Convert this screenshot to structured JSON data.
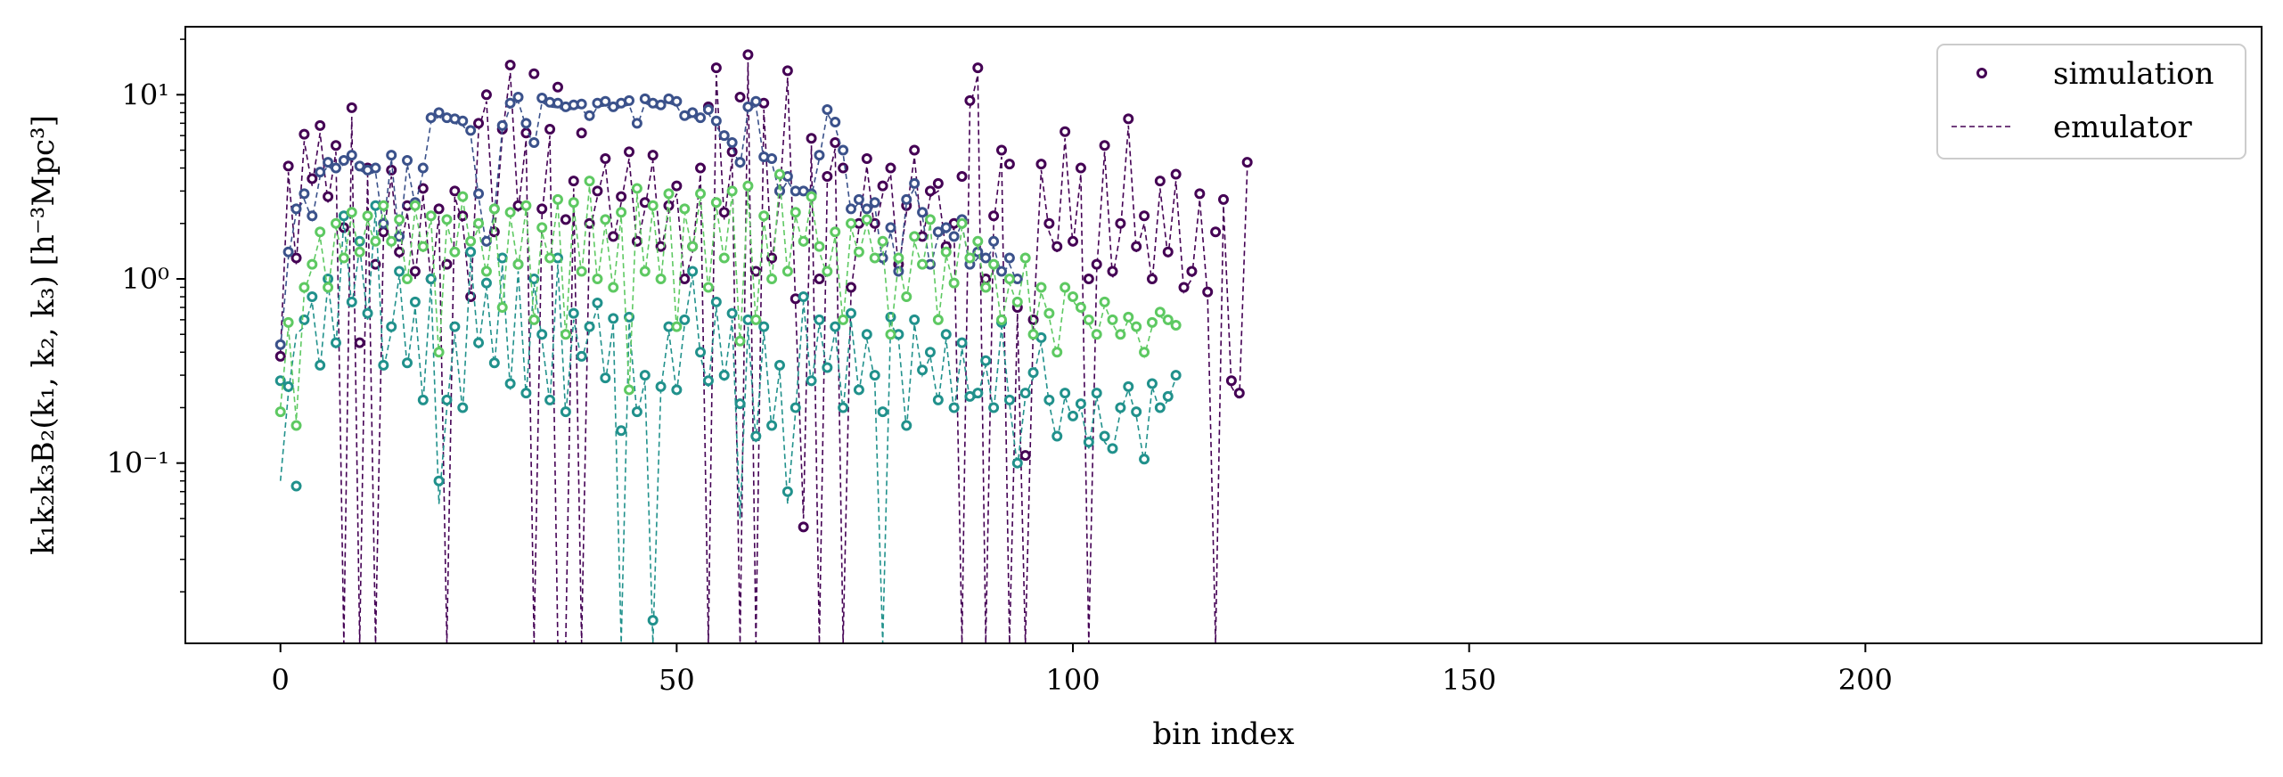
{
  "chart_data": {
    "type": "scatter",
    "title": "",
    "xlabel": "bin index",
    "ylabel": "k₁k₂k₃B₂(k₁, k₂, k₃) [h⁻³Mpc³]",
    "xlim": [
      -12,
      250
    ],
    "ylim": [
      0.0105,
      23.4
    ],
    "yscale": "log",
    "grid": false,
    "legend_position": "top-right",
    "x_ticks": [
      0,
      50,
      100,
      150,
      200
    ],
    "y_ticks": [
      {
        "value": 0.1,
        "label": "10⁻¹"
      },
      {
        "value": 1,
        "label": "10⁰"
      },
      {
        "value": 10,
        "label": "10¹"
      }
    ],
    "legend": [
      {
        "label": "simulation",
        "style": "marker",
        "color": "#440154"
      },
      {
        "label": "emulator",
        "style": "dashed-line",
        "color": "#440154"
      }
    ],
    "series_colors": [
      "#440154",
      "#3b528b",
      "#21918c",
      "#5ec962"
    ],
    "n_bins": 237,
    "series": [
      {
        "color": "#440154",
        "simulation": [
          0.38,
          4.1,
          1.3,
          6.1,
          3.5,
          6.8,
          2.8,
          5.3,
          1.9,
          8.5,
          0.45,
          4.0,
          1.2,
          1.8,
          3.9,
          1.4,
          2.5,
          1.1,
          3.1,
          1.0,
          2.4,
          1.2,
          3.0,
          2.2,
          0.8,
          7.0,
          10.0,
          1.8,
          6.5,
          14.5,
          2.5,
          6.2,
          13.0,
          2.4,
          6.5,
          11.0,
          2.1,
          3.4,
          6.2,
          2.0,
          3.0,
          4.5,
          1.7,
          2.8,
          4.9,
          1.6,
          2.6,
          4.7,
          1.5,
          2.5,
          3.2,
          1.0,
          1.5,
          4.0,
          8.6,
          14.0,
          2.3,
          4.9,
          9.7,
          16.5,
          1.1,
          9.0,
          1.3,
          3.0,
          13.5,
          0.78,
          0.045,
          5.8,
          1.0,
          3.6,
          5.5,
          4.0,
          0.9,
          2.0,
          4.5,
          2.0,
          3.2,
          4.0,
          1.2,
          2.5,
          5.0,
          1.7,
          3.0,
          3.3,
          1.5,
          2.0,
          3.6,
          9.3,
          14.0,
          1.0,
          2.2,
          5.0,
          4.2,
          0.7,
          0.11,
          0.6,
          4.2,
          2.0,
          1.5,
          6.3,
          1.6,
          4.0,
          1.0,
          1.2,
          5.3,
          1.1,
          2.0,
          7.4,
          1.5,
          2.2,
          1.0,
          3.4,
          1.4,
          3.7,
          0.9,
          1.1,
          2.9,
          0.85,
          1.8,
          2.7,
          0.28,
          0.24,
          4.3
        ],
        "emulator": [
          0.4,
          3.8,
          1.2,
          5.6,
          3.2,
          6.2,
          2.6,
          4.9,
          0.01,
          7.6,
          0.01,
          3.7,
          0.01,
          1.7,
          3.6,
          1.3,
          2.3,
          1.0,
          2.9,
          0.95,
          2.2,
          0.01,
          2.8,
          2.0,
          0.75,
          6.4,
          9.2,
          1.7,
          6.0,
          13.2,
          2.3,
          5.7,
          0.01,
          2.2,
          6.0,
          0.01,
          0.01,
          3.1,
          0.01,
          1.8,
          2.8,
          4.2,
          1.6,
          2.6,
          4.5,
          1.5,
          2.4,
          4.4,
          1.4,
          2.3,
          2.9,
          0.95,
          1.4,
          3.7,
          0.01,
          12.8,
          2.1,
          4.5,
          0.01,
          15.0,
          0.01,
          8.3,
          1.2,
          2.8,
          12.4,
          0.72,
          0.05,
          5.3,
          0.01,
          3.3,
          5.1,
          0.01,
          0.85,
          1.9,
          4.1,
          1.8,
          2.9,
          3.7,
          1.1,
          2.3,
          4.6,
          1.6,
          2.8,
          3.0,
          1.4,
          1.9,
          0.01,
          8.5,
          12.8,
          0.01,
          2.0,
          4.6,
          0.01,
          0.65,
          0.01,
          0.55,
          3.9,
          1.8,
          1.4,
          5.8,
          1.5,
          3.7,
          0.01,
          1.1,
          4.9,
          1.0,
          1.8,
          6.8,
          1.4,
          2.0,
          0.95,
          3.1,
          1.3,
          3.4,
          0.85,
          1.0,
          2.7,
          0.8,
          0.01,
          2.5,
          0.26,
          0.22,
          4.0
        ]
      },
      {
        "color": "#3b528b",
        "simulation": [
          0.44,
          1.4,
          2.4,
          2.9,
          2.2,
          3.8,
          4.3,
          4.0,
          4.4,
          4.7,
          4.1,
          3.9,
          4.0,
          2.0,
          4.7,
          1.7,
          4.4,
          2.6,
          4.0,
          7.5,
          8.0,
          7.5,
          7.4,
          7.2,
          6.4,
          2.9,
          1.6,
          2.4,
          6.8,
          9.0,
          9.7,
          7.0,
          5.5,
          9.6,
          9.1,
          9.0,
          8.6,
          8.8,
          8.9,
          7.7,
          9.0,
          9.2,
          8.6,
          9.0,
          9.3,
          7.0,
          9.5,
          9.0,
          8.8,
          9.5,
          9.2,
          7.7,
          8.0,
          7.5,
          8.3,
          7.2,
          6.0,
          5.5,
          4.3,
          8.6,
          9.2,
          4.6,
          4.5,
          3.0,
          3.6,
          3.0,
          3.0,
          2.9,
          4.7,
          8.3,
          7.1,
          5.0,
          2.4,
          2.7,
          2.4,
          2.6,
          1.3,
          1.9,
          1.1,
          2.7,
          3.3,
          2.3,
          1.2,
          1.8,
          1.9,
          1.7,
          2.1,
          1.2,
          1.4,
          1.3,
          1.6,
          1.1,
          1.3,
          1.0
        ],
        "emulator": [
          0.42,
          1.3,
          2.3,
          2.7,
          2.1,
          3.6,
          4.1,
          3.8,
          4.2,
          4.5,
          3.9,
          3.7,
          3.8,
          1.9,
          4.5,
          1.6,
          4.2,
          2.5,
          3.8,
          7.1,
          7.6,
          7.1,
          7.0,
          6.8,
          6.1,
          2.8,
          1.5,
          2.3,
          6.5,
          8.6,
          9.2,
          6.7,
          5.2,
          9.1,
          8.6,
          8.5,
          8.2,
          8.4,
          8.5,
          7.3,
          8.6,
          8.7,
          8.2,
          8.6,
          8.8,
          6.7,
          9.0,
          8.6,
          8.4,
          9.0,
          8.7,
          7.3,
          7.6,
          7.1,
          7.9,
          6.8,
          5.7,
          5.2,
          4.1,
          8.2,
          8.7,
          4.4,
          4.3,
          2.9,
          3.4,
          2.9,
          2.9,
          2.8,
          4.5,
          7.9,
          6.7,
          4.8,
          2.3,
          2.6,
          2.3,
          2.5,
          1.2,
          1.8,
          1.05,
          2.6,
          3.1,
          2.2,
          1.15,
          1.7,
          1.8,
          1.6,
          2.0,
          1.15,
          1.3,
          1.25,
          1.5,
          1.05,
          1.2,
          0.95
        ]
      },
      {
        "color": "#21918c",
        "simulation": [
          0.28,
          0.26,
          0.075,
          0.6,
          0.8,
          0.34,
          1.0,
          0.45,
          2.2,
          0.75,
          1.6,
          0.65,
          2.5,
          0.34,
          0.55,
          1.1,
          0.35,
          0.75,
          0.22,
          1.0,
          0.08,
          0.22,
          0.55,
          0.2,
          1.4,
          0.45,
          0.95,
          0.35,
          1.3,
          0.27,
          1.2,
          0.24,
          1.0,
          0.5,
          0.22,
          1.3,
          0.19,
          0.65,
          0.38,
          0.55,
          0.74,
          0.29,
          0.61,
          0.15,
          0.62,
          0.19,
          0.3,
          0.014,
          0.26,
          0.55,
          0.25,
          0.6,
          1.1,
          0.4,
          0.28,
          0.75,
          0.3,
          0.65,
          0.21,
          0.6,
          0.14,
          0.55,
          0.16,
          0.34,
          0.07,
          0.2,
          0.8,
          0.28,
          0.6,
          0.33,
          0.55,
          0.2,
          0.65,
          0.25,
          0.5,
          0.3,
          0.19,
          0.62,
          0.5,
          0.16,
          0.6,
          0.32,
          0.4,
          0.22,
          0.5,
          0.2,
          0.45,
          0.23,
          0.24,
          0.36,
          0.2,
          0.58,
          0.22,
          0.1,
          0.24,
          0.31,
          0.48,
          0.22,
          0.14,
          0.24,
          0.18,
          0.21,
          0.13,
          0.24,
          0.14,
          0.12,
          0.2,
          0.26,
          0.19,
          0.105,
          0.27,
          0.2,
          0.23,
          0.3
        ],
        "emulator": [
          0.08,
          0.24,
          0.5,
          0.55,
          0.75,
          0.32,
          0.95,
          0.42,
          2.1,
          0.7,
          1.5,
          0.6,
          2.4,
          0.32,
          0.52,
          1.05,
          0.33,
          0.7,
          0.21,
          0.95,
          0.06,
          0.2,
          0.5,
          0.19,
          1.3,
          0.42,
          0.9,
          0.33,
          1.2,
          0.25,
          1.1,
          0.23,
          0.95,
          0.47,
          0.21,
          1.2,
          0.18,
          0.6,
          0.36,
          0.52,
          0.7,
          0.27,
          0.58,
          0.01,
          0.58,
          0.18,
          0.28,
          0.01,
          0.25,
          0.52,
          0.24,
          0.57,
          1.05,
          0.38,
          0.26,
          0.7,
          0.28,
          0.6,
          0.05,
          0.55,
          0.13,
          0.52,
          0.15,
          0.32,
          0.06,
          0.19,
          0.75,
          0.26,
          0.57,
          0.31,
          0.52,
          0.19,
          0.6,
          0.24,
          0.47,
          0.28,
          0.01,
          0.58,
          0.47,
          0.15,
          0.57,
          0.3,
          0.38,
          0.21,
          0.47,
          0.19,
          0.42,
          0.22,
          0.23,
          0.34,
          0.19,
          0.55,
          0.21,
          0.095,
          0.23,
          0.29,
          0.45,
          0.21,
          0.13,
          0.23,
          0.17,
          0.2,
          0.12,
          0.23,
          0.13,
          0.115,
          0.19,
          0.25,
          0.18,
          0.1,
          0.26,
          0.19,
          0.22,
          0.29
        ]
      },
      {
        "color": "#5ec962",
        "simulation": [
          0.19,
          0.58,
          0.16,
          0.9,
          1.2,
          1.8,
          0.9,
          2.0,
          1.3,
          2.3,
          1.4,
          2.2,
          1.6,
          2.5,
          1.6,
          2.1,
          1.0,
          2.5,
          1.5,
          2.2,
          0.4,
          2.1,
          1.4,
          2.8,
          1.6,
          2.0,
          1.1,
          2.4,
          0.7,
          2.3,
          1.2,
          2.5,
          0.6,
          1.9,
          1.3,
          2.7,
          0.5,
          2.6,
          1.1,
          3.4,
          1.0,
          2.1,
          0.9,
          2.3,
          0.25,
          3.1,
          1.1,
          2.5,
          1.0,
          2.9,
          0.55,
          2.4,
          1.5,
          2.9,
          0.9,
          2.6,
          1.3,
          3.0,
          0.46,
          3.2,
          0.6,
          2.2,
          1.0,
          3.7,
          1.1,
          2.3,
          1.6,
          2.8,
          1.5,
          1.1,
          1.8,
          0.6,
          2.0,
          1.4,
          2.1,
          1.3,
          1.6,
          0.5,
          1.3,
          0.8,
          1.7,
          1.2,
          2.1,
          0.6,
          1.4,
          0.95,
          2.0,
          1.3,
          1.6,
          0.9,
          1.2,
          0.6,
          1.0,
          0.75,
          1.3,
          0.5,
          0.9,
          0.65,
          0.4,
          0.9,
          0.8,
          0.7,
          0.6,
          0.5,
          0.75,
          0.6,
          0.5,
          0.62,
          0.55,
          0.4,
          0.58,
          0.66,
          0.6,
          0.56
        ],
        "emulator": [
          0.2,
          0.55,
          0.17,
          0.85,
          1.15,
          1.7,
          0.85,
          1.9,
          1.25,
          2.2,
          1.35,
          2.1,
          1.5,
          2.4,
          1.5,
          2.0,
          0.95,
          2.4,
          1.4,
          2.1,
          0.38,
          2.0,
          1.35,
          2.7,
          1.5,
          1.9,
          1.05,
          2.3,
          0.67,
          2.2,
          1.15,
          2.4,
          0.58,
          1.8,
          1.25,
          2.6,
          0.48,
          2.5,
          1.05,
          3.2,
          0.95,
          2.0,
          0.85,
          2.2,
          0.24,
          2.9,
          1.05,
          2.4,
          0.95,
          2.8,
          0.52,
          2.3,
          1.4,
          2.8,
          0.85,
          2.5,
          1.25,
          2.9,
          0.44,
          3.0,
          0.57,
          2.1,
          0.95,
          3.5,
          1.05,
          2.2,
          1.5,
          2.7,
          1.4,
          1.05,
          1.7,
          0.57,
          1.9,
          1.35,
          2.0,
          1.25,
          1.5,
          0.48,
          1.25,
          0.76,
          1.6,
          1.15,
          2.0,
          0.57,
          1.35,
          0.9,
          1.9,
          1.25,
          1.5,
          0.85,
          1.15,
          0.57,
          0.95,
          0.72,
          1.25,
          0.48,
          0.85,
          0.62,
          0.38,
          0.85,
          0.76,
          0.67,
          0.57,
          0.48,
          0.72,
          0.57,
          0.48,
          0.6,
          0.52,
          0.38,
          0.55,
          0.63,
          0.57,
          0.53
        ]
      }
    ]
  }
}
